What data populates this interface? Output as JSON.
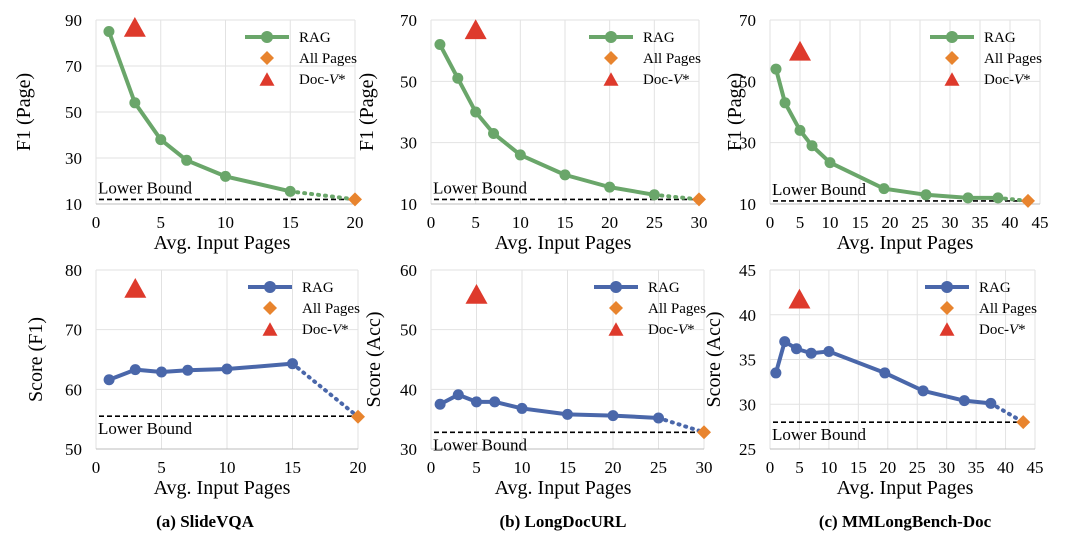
{
  "colors": {
    "rag_top": "#6aa66a",
    "rag_bottom": "#4a67aa",
    "all_pages": "#e8842e",
    "docv": "#de3a2c",
    "lower_bound": "#000000"
  },
  "legend": {
    "rag": "RAG",
    "all_pages": "All Pages",
    "docv_prefix": "Doc-",
    "docv_italic": "V",
    "docv_suffix": "*"
  },
  "lower_bound_label": "Lower Bound",
  "captions": [
    "(a) SlideVQA",
    "(b) LongDocURL",
    "(c) MMLongBench-Doc"
  ],
  "chart_data": [
    {
      "type": "line",
      "id": "a-top",
      "caption": "(a) SlideVQA",
      "xlabel": "Avg. Input Pages",
      "ylabel": "F1 (Page)",
      "xlim": [
        0,
        20
      ],
      "xticks": [
        0,
        5,
        10,
        15,
        20
      ],
      "ylim": [
        10,
        90
      ],
      "yticks": [
        10,
        30,
        50,
        70,
        90
      ],
      "series": [
        {
          "name": "RAG",
          "x": [
            1,
            3,
            5,
            7,
            10,
            15
          ],
          "y": [
            85,
            54,
            38,
            29,
            22,
            15.5
          ]
        }
      ],
      "all_pages": {
        "x": 20,
        "y": 12
      },
      "docv": {
        "x": 3,
        "y": 87
      },
      "lower_bound": 12
    },
    {
      "type": "line",
      "id": "b-top",
      "caption": "(b) LongDocURL",
      "xlabel": "Avg. Input Pages",
      "ylabel": "F1 (Page)",
      "xlim": [
        0,
        30
      ],
      "xticks": [
        0,
        5,
        10,
        15,
        20,
        25,
        30
      ],
      "ylim": [
        10,
        70
      ],
      "yticks": [
        10,
        30,
        50,
        70
      ],
      "series": [
        {
          "name": "RAG",
          "x": [
            1,
            3,
            5,
            7,
            10,
            15,
            20,
            25
          ],
          "y": [
            62,
            51,
            40,
            33,
            26,
            19.5,
            15.5,
            13
          ]
        }
      ],
      "all_pages": {
        "x": 30,
        "y": 11.5
      },
      "docv": {
        "x": 5,
        "y": 67
      },
      "lower_bound": 11.5
    },
    {
      "type": "line",
      "id": "c-top",
      "caption": "(c) MMLongBench-Doc",
      "xlabel": "Avg. Input Pages",
      "ylabel": "F1 (Page)",
      "xlim": [
        0,
        45
      ],
      "xticks": [
        0,
        5,
        10,
        15,
        20,
        25,
        30,
        35,
        40,
        45
      ],
      "ylim": [
        10,
        70
      ],
      "yticks": [
        10,
        30,
        50,
        70
      ],
      "series": [
        {
          "name": "RAG",
          "x": [
            1,
            2.5,
            5,
            7,
            10,
            19,
            26,
            33,
            38
          ],
          "y": [
            54,
            43,
            34,
            29,
            23.5,
            15,
            13,
            12,
            12
          ]
        }
      ],
      "all_pages": {
        "x": 43,
        "y": 11
      },
      "docv": {
        "x": 5,
        "y": 60
      },
      "lower_bound": 11
    },
    {
      "type": "line",
      "id": "a-bottom",
      "caption": "(a) SlideVQA",
      "xlabel": "Avg. Input Pages",
      "ylabel": "Score (F1)",
      "xlim": [
        0,
        20
      ],
      "xticks": [
        0,
        5,
        10,
        15,
        20
      ],
      "ylim": [
        50,
        80
      ],
      "yticks": [
        50,
        60,
        70,
        80
      ],
      "series": [
        {
          "name": "RAG",
          "x": [
            1,
            3,
            5,
            7,
            10,
            15
          ],
          "y": [
            61.6,
            63.3,
            62.9,
            63.2,
            63.4,
            64.3
          ]
        }
      ],
      "all_pages": {
        "x": 20,
        "y": 55.4
      },
      "docv": {
        "x": 3,
        "y": 77
      },
      "lower_bound": 55.5
    },
    {
      "type": "line",
      "id": "b-bottom",
      "caption": "(b) LongDocURL",
      "xlabel": "Avg. Input Pages",
      "ylabel": "Score (Acc)",
      "xlim": [
        0,
        30
      ],
      "xticks": [
        0,
        5,
        10,
        15,
        20,
        25,
        30
      ],
      "ylim": [
        30,
        60
      ],
      "yticks": [
        30,
        40,
        50,
        60
      ],
      "series": [
        {
          "name": "RAG",
          "x": [
            1,
            3,
            5,
            7,
            10,
            15,
            20,
            25
          ],
          "y": [
            37.5,
            39.1,
            37.9,
            37.9,
            36.8,
            35.8,
            35.6,
            35.2
          ]
        }
      ],
      "all_pages": {
        "x": 30,
        "y": 32.8
      },
      "docv": {
        "x": 5,
        "y": 56
      },
      "lower_bound": 32.8
    },
    {
      "type": "line",
      "id": "c-bottom",
      "caption": "(c) MMLongBench-Doc",
      "xlabel": "Avg. Input Pages",
      "ylabel": "Score (Acc)",
      "xlim": [
        0,
        45
      ],
      "xticks": [
        0,
        5,
        10,
        15,
        20,
        25,
        30,
        35,
        40,
        45
      ],
      "ylim": [
        25,
        45
      ],
      "yticks": [
        25,
        30,
        35,
        40,
        45
      ],
      "series": [
        {
          "name": "RAG",
          "x": [
            1,
            2.5,
            4.5,
            7,
            10,
            19.5,
            26,
            33,
            37.5
          ],
          "y": [
            33.5,
            37,
            36.2,
            35.7,
            35.9,
            33.5,
            31.5,
            30.4,
            30.1
          ]
        }
      ],
      "all_pages": {
        "x": 43,
        "y": 28
      },
      "docv": {
        "x": 5,
        "y": 41.8
      },
      "lower_bound": 28
    }
  ]
}
